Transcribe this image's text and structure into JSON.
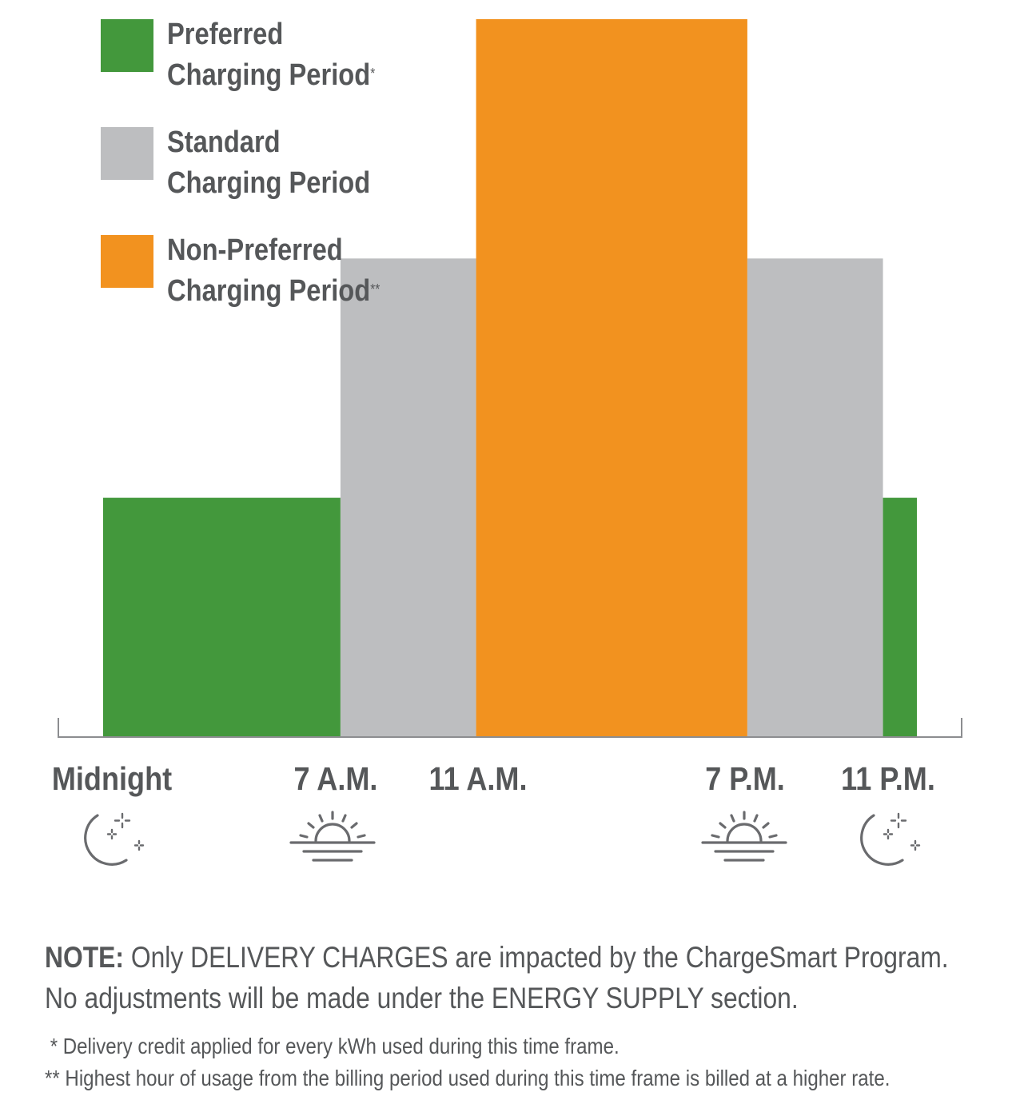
{
  "chart_data": {
    "type": "bar",
    "categories": [
      "Midnight",
      "7 A.M.",
      "11 A.M.",
      "7 P.M.",
      "11 P.M."
    ],
    "periods": [
      {
        "start": 0,
        "end": 7,
        "level": 1,
        "series": "Preferred Charging Period"
      },
      {
        "start": 7,
        "end": 11,
        "level": 2,
        "series": "Standard Charging Period"
      },
      {
        "start": 11,
        "end": 19,
        "level": 3,
        "series": "Non-Preferred Charging Period"
      },
      {
        "start": 19,
        "end": 23,
        "level": 2,
        "series": "Standard Charging Period"
      },
      {
        "start": 23,
        "end": 24,
        "level": 1,
        "series": "Preferred Charging Period"
      }
    ],
    "tick_hours": [
      0,
      7,
      11,
      19,
      23
    ],
    "x_range": [
      0,
      24
    ],
    "ylim": [
      0,
      3
    ],
    "grid": false,
    "legend_position": "top-left",
    "title": "",
    "xlabel": "",
    "ylabel": ""
  },
  "legend": [
    {
      "line1": "Preferred",
      "line2": "Charging Period",
      "mark": "*",
      "color": "#43983c"
    },
    {
      "line1": "Standard",
      "line2": "Charging Period",
      "mark": "",
      "color": "#bdbec0"
    },
    {
      "line1": "Non-Preferred",
      "line2": "Charging Period",
      "mark": "**",
      "color": "#f2921f"
    }
  ],
  "axis_labels": [
    "Midnight",
    "7 A.M.",
    "11 A.M.",
    "7 P.M.",
    "11 P.M."
  ],
  "icons": [
    "moon-stars-icon",
    "sunrise-icon",
    "sunset-icon",
    "moon-stars-icon"
  ],
  "colors": {
    "axis": "#8c8d90",
    "text": "#555759",
    "icon": "#6a6b6e"
  },
  "note": {
    "lead": "NOTE:",
    "part1": " Only ",
    "caps1": "DELIVERY CHARGES",
    "part2": " are impacted by the ChargeSmart Program.",
    "part3": "No adjustments will be made under the ",
    "caps2": "ENERGY SUPPLY",
    "part4": " section."
  },
  "footnotes": [
    " * Delivery credit applied for every kWh used during this time frame.",
    "** Highest hour of usage from the billing period used during this time frame is billed at a higher rate."
  ]
}
